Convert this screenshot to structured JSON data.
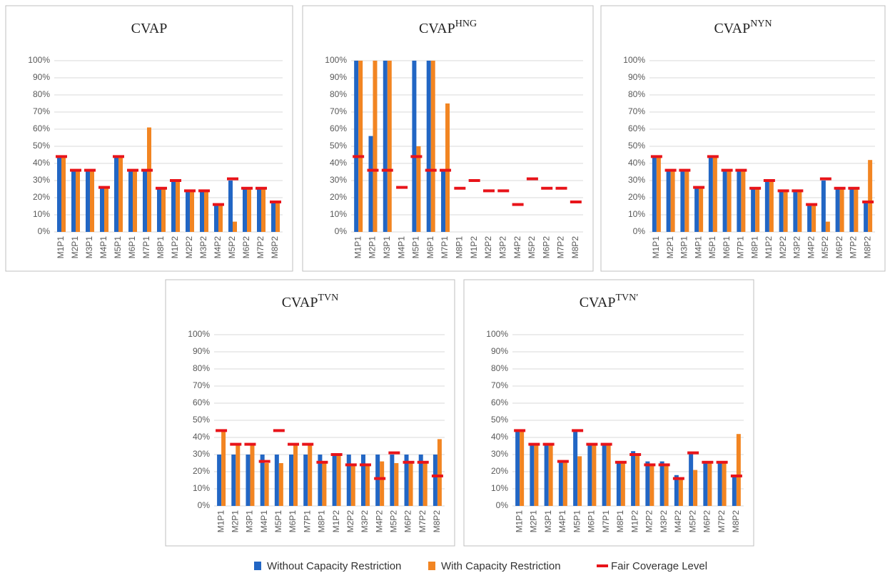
{
  "chart_data": [
    {
      "type": "bar",
      "title": "CVAP",
      "categories": [
        "M1P1",
        "M2P1",
        "M3P1",
        "M4P1",
        "M5P1",
        "M6P1",
        "M7P1",
        "M8P1",
        "M1P2",
        "M2P2",
        "M3P2",
        "M4P2",
        "M5P2",
        "M6P2",
        "M7P2",
        "M8P2"
      ],
      "series": [
        {
          "name": "Without Capacity Restriction",
          "color": "#2266c4",
          "values": [
            44,
            36,
            36,
            26,
            44,
            36,
            36,
            25,
            30,
            24,
            24,
            16,
            30,
            25,
            25,
            17
          ]
        },
        {
          "name": "With Capacity Restriction",
          "color": "#f28522",
          "values": [
            44,
            36,
            36,
            26,
            44,
            36,
            61,
            25,
            30,
            24,
            24,
            16,
            6,
            25,
            25,
            17
          ]
        },
        {
          "name": "Fair Coverage Level",
          "color": "#e8141a",
          "marker": "dash",
          "values": [
            44,
            36,
            36,
            26,
            44,
            36,
            36,
            25.5,
            30,
            24,
            24,
            16,
            31,
            25.5,
            25.5,
            17.5
          ]
        }
      ],
      "ylim": [
        0,
        100
      ],
      "yticks": [
        {
          "value": 0,
          "label": "0%"
        },
        {
          "value": 10,
          "label": "10%"
        },
        {
          "value": 20,
          "label": "20%"
        },
        {
          "value": 30,
          "label": "30%"
        },
        {
          "value": 40,
          "label": "40%"
        },
        {
          "value": 50,
          "label": "50%"
        },
        {
          "value": 60,
          "label": "60%"
        },
        {
          "value": 70,
          "label": "70%"
        },
        {
          "value": 80,
          "label": "80%"
        },
        {
          "value": 90,
          "label": "90%"
        },
        {
          "value": 100,
          "label": "100%"
        }
      ],
      "grid": true
    },
    {
      "type": "bar",
      "title": "CVAP",
      "title_sup": "HNG",
      "categories": [
        "M1P1",
        "M2P1",
        "M3P1",
        "M4P1",
        "M5P1",
        "M6P1",
        "M7P1",
        "M8P1",
        "M1P2",
        "M2P2",
        "M3P2",
        "M4P2",
        "M5P2",
        "M6P2",
        "M7P2",
        "M8P2"
      ],
      "series": [
        {
          "name": "Without Capacity Restriction",
          "color": "#2266c4",
          "values": [
            100,
            56,
            100,
            0,
            100,
            100,
            36,
            0,
            0,
            0,
            0,
            0,
            0,
            0,
            0,
            0
          ]
        },
        {
          "name": "With Capacity Restriction",
          "color": "#f28522",
          "values": [
            100,
            100,
            100,
            0,
            50,
            100,
            75,
            0,
            0,
            0,
            0,
            0,
            0,
            0,
            0,
            0
          ]
        },
        {
          "name": "Fair Coverage Level",
          "color": "#e8141a",
          "marker": "dash",
          "values": [
            44,
            36,
            36,
            26,
            44,
            36,
            36,
            25.5,
            30,
            24,
            24,
            16,
            31,
            25.5,
            25.5,
            17.5
          ]
        }
      ],
      "ylim": [
        0,
        100
      ],
      "yticks": [
        {
          "value": 0,
          "label": "0%"
        },
        {
          "value": 10,
          "label": "10%"
        },
        {
          "value": 20,
          "label": "20%"
        },
        {
          "value": 30,
          "label": "30%"
        },
        {
          "value": 40,
          "label": "40%"
        },
        {
          "value": 50,
          "label": "50%"
        },
        {
          "value": 60,
          "label": "60%"
        },
        {
          "value": 70,
          "label": "70%"
        },
        {
          "value": 80,
          "label": "80%"
        },
        {
          "value": 90,
          "label": "90%"
        },
        {
          "value": 100,
          "label": "100%"
        }
      ],
      "grid": true
    },
    {
      "type": "bar",
      "title": "CVAP",
      "title_sup": "NYN",
      "categories": [
        "M1P1",
        "M2P1",
        "M3P1",
        "M4P1",
        "M5P1",
        "M6P1",
        "M7P1",
        "M8P1",
        "M1P2",
        "M2P2",
        "M3P2",
        "M4P2",
        "M5P2",
        "M6P2",
        "M7P2",
        "M8P2"
      ],
      "series": [
        {
          "name": "Without Capacity Restriction",
          "color": "#2266c4",
          "values": [
            44,
            36,
            36,
            26,
            44,
            36,
            36,
            25,
            30,
            24,
            24,
            16,
            30,
            25,
            25,
            17
          ]
        },
        {
          "name": "With Capacity Restriction",
          "color": "#f28522",
          "values": [
            44,
            36,
            36,
            26,
            44,
            36,
            36,
            25,
            30,
            24,
            24,
            16,
            6,
            25,
            25,
            42
          ]
        },
        {
          "name": "Fair Coverage Level",
          "color": "#e8141a",
          "marker": "dash",
          "values": [
            44,
            36,
            36,
            26,
            44,
            36,
            36,
            25.5,
            30,
            24,
            24,
            16,
            31,
            25.5,
            25.5,
            17.5
          ]
        }
      ],
      "ylim": [
        0,
        100
      ],
      "yticks": [
        {
          "value": 0,
          "label": "0%"
        },
        {
          "value": 10,
          "label": "10%"
        },
        {
          "value": 20,
          "label": "20%"
        },
        {
          "value": 30,
          "label": "30%"
        },
        {
          "value": 40,
          "label": "40%"
        },
        {
          "value": 50,
          "label": "50%"
        },
        {
          "value": 60,
          "label": "60%"
        },
        {
          "value": 70,
          "label": "70%"
        },
        {
          "value": 80,
          "label": "80%"
        },
        {
          "value": 90,
          "label": "90%"
        },
        {
          "value": 100,
          "label": "100%"
        }
      ],
      "grid": true
    },
    {
      "type": "bar",
      "title": "CVAP",
      "title_sup": "TVN",
      "categories": [
        "M1P1",
        "M2P1",
        "M3P1",
        "M4P1",
        "M5P1",
        "M6P1",
        "M7P1",
        "M8P1",
        "M1P2",
        "M2P2",
        "M3P2",
        "M4P2",
        "M5P2",
        "M6P2",
        "M7P2",
        "M8P2"
      ],
      "series": [
        {
          "name": "Without Capacity Restriction",
          "color": "#2266c4",
          "values": [
            30,
            30,
            30,
            30,
            30,
            30,
            30,
            30,
            30,
            30,
            30,
            30,
            30,
            30,
            30,
            30
          ]
        },
        {
          "name": "With Capacity Restriction",
          "color": "#f28522",
          "values": [
            44,
            36,
            36,
            25,
            25,
            36,
            36,
            25,
            30,
            24,
            24,
            26,
            25,
            25,
            25,
            39
          ]
        },
        {
          "name": "Fair Coverage Level",
          "color": "#e8141a",
          "marker": "dash",
          "values": [
            44,
            36,
            36,
            26,
            44,
            36,
            36,
            25.5,
            30,
            24,
            24,
            16,
            31,
            25.5,
            25.5,
            17.5
          ]
        }
      ],
      "ylim": [
        0,
        100
      ],
      "yticks": [
        {
          "value": 0,
          "label": "0%"
        },
        {
          "value": 10,
          "label": "10%"
        },
        {
          "value": 20,
          "label": "20%"
        },
        {
          "value": 30,
          "label": "30%"
        },
        {
          "value": 40,
          "label": "40%"
        },
        {
          "value": 50,
          "label": "50%"
        },
        {
          "value": 60,
          "label": "60%"
        },
        {
          "value": 70,
          "label": "70%"
        },
        {
          "value": 80,
          "label": "80%"
        },
        {
          "value": 90,
          "label": "90%"
        },
        {
          "value": 100,
          "label": "100%"
        }
      ],
      "grid": true
    },
    {
      "type": "bar",
      "title": "CVAP",
      "title_sup": "TVN′",
      "categories": [
        "M1P1",
        "M2P1",
        "M3P1",
        "M4P1",
        "M5P1",
        "M6P1",
        "M7P1",
        "M8P1",
        "M1P2",
        "M2P2",
        "M3P2",
        "M4P2",
        "M5P2",
        "M6P2",
        "M7P2",
        "M8P2"
      ],
      "series": [
        {
          "name": "Without Capacity Restriction",
          "color": "#2266c4",
          "values": [
            44,
            36,
            36,
            26,
            44,
            36,
            36,
            25,
            32,
            26,
            26,
            18,
            31,
            25,
            25,
            17
          ]
        },
        {
          "name": "With Capacity Restriction",
          "color": "#f28522",
          "values": [
            44,
            36,
            36,
            26,
            29,
            36,
            36,
            25,
            30,
            24,
            24,
            16,
            21,
            25,
            25,
            42
          ]
        },
        {
          "name": "Fair Coverage Level",
          "color": "#e8141a",
          "marker": "dash",
          "values": [
            44,
            36,
            36,
            26,
            44,
            36,
            36,
            25.5,
            30,
            24,
            24,
            16,
            31,
            25.5,
            25.5,
            17.5
          ]
        }
      ],
      "ylim": [
        0,
        100
      ],
      "yticks": [
        {
          "value": 0,
          "label": "0%"
        },
        {
          "value": 10,
          "label": "10%"
        },
        {
          "value": 20,
          "label": "20%"
        },
        {
          "value": 30,
          "label": "30%"
        },
        {
          "value": 40,
          "label": "40%"
        },
        {
          "value": 50,
          "label": "50%"
        },
        {
          "value": 60,
          "label": "60%"
        },
        {
          "value": 70,
          "label": "70%"
        },
        {
          "value": 80,
          "label": "80%"
        },
        {
          "value": 90,
          "label": "90%"
        },
        {
          "value": 100,
          "label": "100%"
        }
      ],
      "grid": true
    }
  ]
}
